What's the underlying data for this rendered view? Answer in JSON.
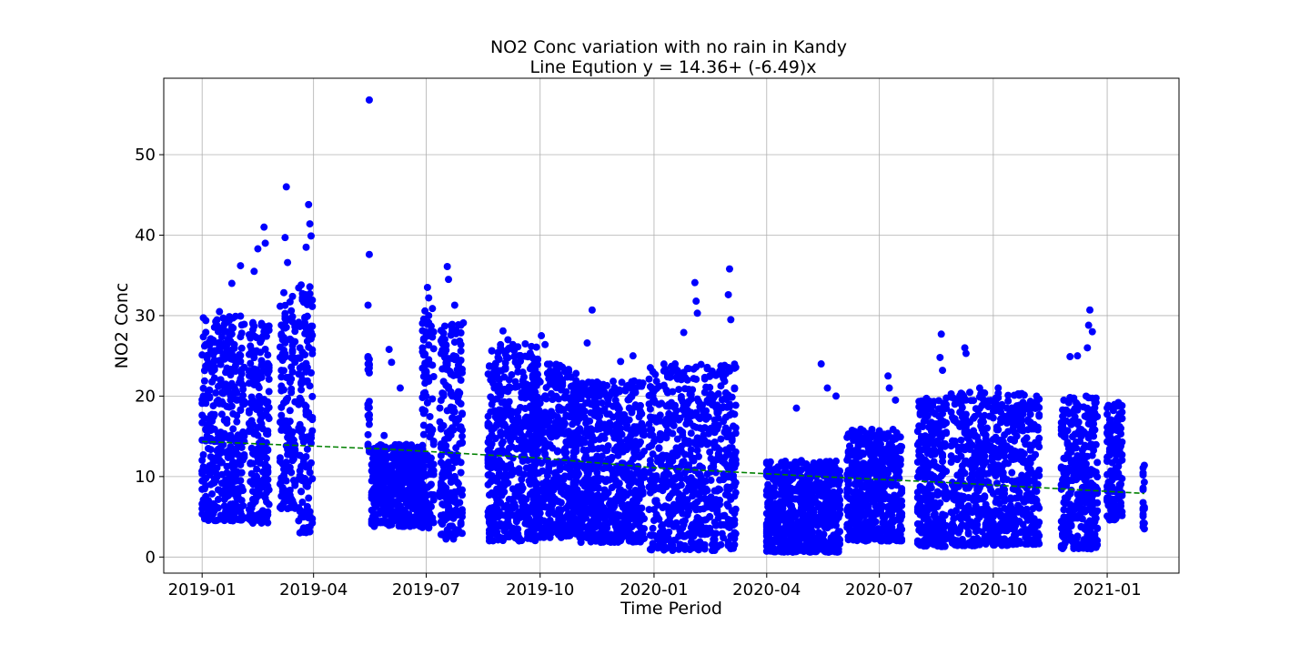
{
  "chart_data": {
    "type": "scatter",
    "title": "NO2 Conc variation with no rain in Kandy",
    "subtitle": "Line Eqution y = 14.36+ (-6.49)x",
    "xlabel": "Time Period",
    "ylabel": "NO2 Conc",
    "x_ticks": [
      "2019-01",
      "2019-04",
      "2019-07",
      "2019-10",
      "2020-01",
      "2020-04",
      "2020-07",
      "2020-10",
      "2021-01"
    ],
    "y_ticks": [
      0,
      10,
      20,
      30,
      40,
      50
    ],
    "xlim": [
      "2018-12-01",
      "2021-02-28"
    ],
    "ylim": [
      -2,
      59.5
    ],
    "grid": true,
    "colors": {
      "points": "#0000ff",
      "trend": "#008000"
    },
    "series": [
      {
        "marker": "circle",
        "color": "#0000ff",
        "clusters": [
          {
            "start": "2019-01-01",
            "end": "2019-02-05",
            "min": 4.5,
            "max": 30,
            "extremes": [
              [
                "2019-01-25",
                34
              ],
              [
                "2019-02-01",
                36.2
              ],
              [
                "2019-01-15",
                30.5
              ]
            ]
          },
          {
            "start": "2019-02-08",
            "end": "2019-02-25",
            "min": 4.2,
            "max": 30,
            "extremes": [
              [
                "2019-02-15",
                38.3
              ],
              [
                "2019-02-20",
                41
              ],
              [
                "2019-02-21",
                39
              ],
              [
                "2019-02-12",
                35.5
              ]
            ]
          },
          {
            "start": "2019-03-05",
            "end": "2019-03-18",
            "min": 6,
            "max": 33,
            "extremes": [
              [
                "2019-03-10",
                46
              ],
              [
                "2019-03-09",
                39.7
              ],
              [
                "2019-03-11",
                36.6
              ]
            ]
          },
          {
            "start": "2019-03-20",
            "end": "2019-04-01",
            "min": 3,
            "max": 34,
            "extremes": [
              [
                "2019-03-28",
                43.8
              ],
              [
                "2019-03-29",
                41.4
              ],
              [
                "2019-03-26",
                38.5
              ],
              [
                "2019-03-30",
                39.9
              ]
            ]
          },
          {
            "start": "2019-05-15",
            "end": "2019-05-17",
            "min": 13,
            "max": 27,
            "extremes": [
              [
                "2019-05-16",
                56.8
              ],
              [
                "2019-05-16",
                37.6
              ],
              [
                "2019-05-15",
                31.3
              ],
              [
                "2019-05-15",
                24
              ],
              [
                "2019-05-16",
                17.7
              ]
            ]
          },
          {
            "start": "2019-05-18",
            "end": "2019-06-30",
            "min": 3.8,
            "max": 14,
            "extremes": [
              [
                "2019-06-01",
                25.8
              ],
              [
                "2019-06-03",
                24.2
              ],
              [
                "2019-06-10",
                21
              ],
              [
                "2019-05-28",
                15.1
              ]
            ]
          },
          {
            "start": "2019-06-28",
            "end": "2019-07-08",
            "min": 3.5,
            "max": 31,
            "extremes": [
              [
                "2019-07-02",
                33.5
              ],
              [
                "2019-07-03",
                32.2
              ]
            ]
          },
          {
            "start": "2019-07-12",
            "end": "2019-07-31",
            "min": 2.2,
            "max": 29,
            "extremes": [
              [
                "2019-07-18",
                36.1
              ],
              [
                "2019-07-19",
                34.5
              ],
              [
                "2019-07-24",
                31.3
              ],
              [
                "2019-07-31",
                29.1
              ]
            ]
          },
          {
            "start": "2019-08-20",
            "end": "2019-09-30",
            "min": 2,
            "max": 26.5,
            "extremes": [
              [
                "2019-09-01",
                28.1
              ],
              [
                "2019-09-05",
                27
              ]
            ]
          },
          {
            "start": "2019-09-25",
            "end": "2019-10-31",
            "min": 2.4,
            "max": 24,
            "extremes": [
              [
                "2019-10-02",
                27.5
              ],
              [
                "2019-10-05",
                26.4
              ]
            ]
          },
          {
            "start": "2019-10-28",
            "end": "2019-12-25",
            "min": 1.8,
            "max": 22,
            "extremes": [
              [
                "2019-11-12",
                30.7
              ],
              [
                "2019-11-08",
                26.6
              ],
              [
                "2019-12-05",
                24.3
              ],
              [
                "2019-12-15",
                25
              ]
            ]
          },
          {
            "start": "2019-12-28",
            "end": "2020-03-08",
            "min": 0.8,
            "max": 24,
            "extremes": [
              [
                "2020-02-03",
                34.1
              ],
              [
                "2020-02-04",
                31.8
              ],
              [
                "2020-02-05",
                30.3
              ],
              [
                "2020-03-02",
                35.8
              ],
              [
                "2020-03-01",
                32.6
              ],
              [
                "2020-01-25",
                27.9
              ],
              [
                "2020-03-03",
                29.5
              ]
            ]
          },
          {
            "start": "2020-04-01",
            "end": "2020-05-31",
            "min": 0.6,
            "max": 12,
            "extremes": [
              [
                "2020-05-15",
                24
              ],
              [
                "2020-05-20",
                21
              ],
              [
                "2020-04-25",
                18.5
              ],
              [
                "2020-05-27",
                20
              ]
            ]
          },
          {
            "start": "2020-06-05",
            "end": "2020-07-20",
            "min": 2,
            "max": 16,
            "extremes": [
              [
                "2020-07-08",
                22.5
              ],
              [
                "2020-07-09",
                21
              ],
              [
                "2020-07-14",
                19.5
              ]
            ]
          },
          {
            "start": "2020-08-01",
            "end": "2020-08-25",
            "min": 1.3,
            "max": 20,
            "extremes": [
              [
                "2020-08-20",
                27.7
              ],
              [
                "2020-08-19",
                24.8
              ],
              [
                "2020-08-21",
                23.2
              ]
            ]
          },
          {
            "start": "2020-08-28",
            "end": "2020-11-08",
            "min": 1.4,
            "max": 20.5,
            "extremes": [
              [
                "2020-09-08",
                26
              ],
              [
                "2020-09-09",
                25.3
              ],
              [
                "2020-09-20",
                21
              ],
              [
                "2020-10-05",
                21
              ]
            ]
          },
          {
            "start": "2020-11-25",
            "end": "2020-12-25",
            "min": 1,
            "max": 20,
            "extremes": [
              [
                "2020-12-08",
                25
              ],
              [
                "2020-12-02",
                24.9
              ],
              [
                "2020-12-18",
                30.7
              ],
              [
                "2020-12-17",
                28.8
              ],
              [
                "2020-12-20",
                28
              ],
              [
                "2020-12-16",
                26
              ]
            ]
          },
          {
            "start": "2021-01-01",
            "end": "2021-01-14",
            "min": 4.5,
            "max": 19,
            "extremes": [
              [
                "2021-01-10",
                19.2
              ],
              [
                "2021-01-13",
                18.8
              ]
            ]
          },
          {
            "start": "2021-01-30",
            "end": "2021-01-31",
            "min": 3.5,
            "max": 11.4,
            "extremes": [
              [
                "2021-01-31",
                3.5
              ],
              [
                "2021-01-31",
                4.2
              ],
              [
                "2021-01-31",
                6
              ],
              [
                "2021-01-31",
                6.2
              ],
              [
                "2021-01-31",
                9.3
              ],
              [
                "2021-01-31",
                11.4
              ]
            ]
          }
        ]
      }
    ],
    "trend_line": {
      "style": "dashed",
      "color": "#008000",
      "points": [
        [
          "2019-01-01",
          14.36
        ],
        [
          "2019-06-01",
          13.4
        ],
        [
          "2019-10-01",
          12.3
        ],
        [
          "2020-01-01",
          11.1
        ],
        [
          "2020-05-01",
          10.1
        ],
        [
          "2020-09-01",
          9.2
        ],
        [
          "2021-01-31",
          7.9
        ]
      ]
    }
  }
}
